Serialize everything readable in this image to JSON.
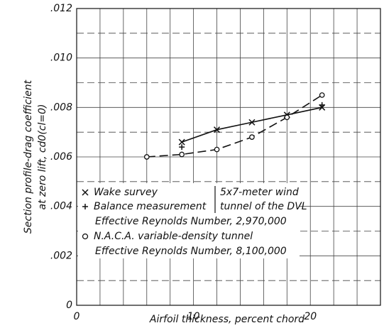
{
  "chart_data": {
    "type": "line",
    "xlabel": "Airfoil thickness, percent chord",
    "ylabel": [
      "Section profile-drag coefficient",
      "at zero lift, cd0(cl=0)"
    ],
    "xlim": [
      0,
      26
    ],
    "ylim": [
      0,
      0.012
    ],
    "xticks": [
      0,
      10,
      20
    ],
    "yticks": [
      {
        "value": 0,
        "label": "0"
      },
      {
        "value": 0.002,
        "label": ".002"
      },
      {
        "value": 0.004,
        "label": ".004"
      },
      {
        "value": 0.006,
        "label": ".006"
      },
      {
        "value": 0.008,
        "label": ".008"
      },
      {
        "value": 0.01,
        "label": ".010"
      },
      {
        "value": 0.012,
        "label": ".012"
      }
    ],
    "xgrid": [
      0,
      2,
      4,
      6,
      8,
      10,
      12,
      14,
      16,
      18,
      20,
      22,
      24,
      26
    ],
    "ygrid": [
      0.001,
      0.002,
      0.003,
      0.004,
      0.005,
      0.006,
      0.007,
      0.008,
      0.009,
      0.01,
      0.011
    ],
    "series": [
      {
        "name": "Wake survey",
        "marker": "x",
        "line": "solid",
        "color": "#111",
        "x": [
          9,
          12,
          15,
          18,
          21
        ],
        "values": [
          0.0066,
          0.0071,
          0.0074,
          0.0077,
          0.008
        ]
      },
      {
        "name": "Balance measurement",
        "marker": "+",
        "line": "none",
        "color": "#111",
        "x": [
          9,
          18,
          21
        ],
        "values": [
          0.0064,
          0.0076,
          0.0081
        ]
      },
      {
        "name": "N.A.C.A. variable-density tunnel",
        "marker": "o",
        "line": "dashed",
        "color": "#111",
        "x": [
          6,
          9,
          12,
          15,
          18,
          21
        ],
        "values": [
          0.006,
          0.0061,
          0.0063,
          0.0068,
          0.0076,
          0.0085
        ]
      }
    ],
    "legend_notes": [
      "5x7-meter wind",
      "tunnel of the DVL",
      "Effective Reynolds Number, 2,970,000",
      "Effective Reynolds Number, 8,100,000"
    ]
  }
}
